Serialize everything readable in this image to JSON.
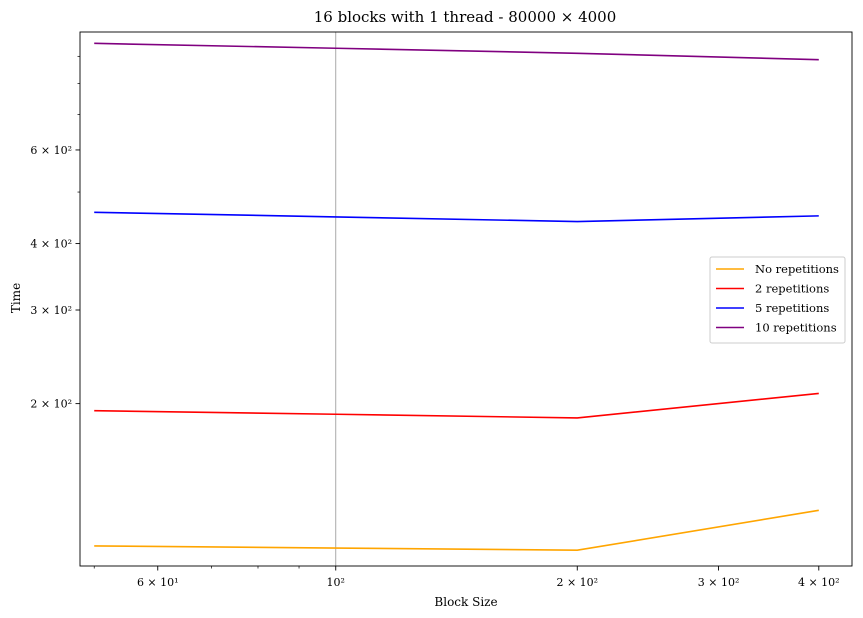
{
  "chart_data": {
    "type": "line",
    "title": "16 blocks with 1 thread - 80000 × 4000",
    "xlabel": "Block Size",
    "ylabel": "Time",
    "xscale": "log",
    "yscale": "log",
    "xlim": [
      48,
      440
    ],
    "ylim": [
      99,
      1000
    ],
    "x_ticks": [
      {
        "value": 100,
        "label": "10²"
      },
      {
        "value": 200,
        "label": "2 × 10²"
      },
      {
        "value": 300,
        "label": "3 × 10²"
      },
      {
        "value": 400,
        "label": "4 × 10²"
      },
      {
        "value": 60,
        "label": "6 × 10¹"
      }
    ],
    "x_minor_ticks": [
      50,
      70,
      80,
      90
    ],
    "y_ticks": [
      {
        "value": 200,
        "label": "2 × 10²"
      },
      {
        "value": 300,
        "label": "3 × 10²"
      },
      {
        "value": 400,
        "label": "4 × 10²"
      },
      {
        "value": 600,
        "label": "6 × 10²"
      }
    ],
    "y_minor_ticks": [
      500,
      700,
      800,
      900
    ],
    "x": [
      50,
      100,
      200,
      400
    ],
    "series": [
      {
        "name": "No repetitions",
        "color": "#ffa500",
        "values": [
          108,
          107,
          106,
          126
        ]
      },
      {
        "name": "2 repetitions",
        "color": "#ff0000",
        "values": [
          194,
          191,
          188,
          209
        ]
      },
      {
        "name": "5 repetitions",
        "color": "#0000ff",
        "values": [
          458,
          449,
          440,
          451
        ]
      },
      {
        "name": "10 repetitions",
        "color": "#800080",
        "values": [
          952,
          932,
          912,
          887
        ]
      }
    ],
    "vlines": [
      100
    ],
    "legend_position": "right",
    "grid": false
  }
}
